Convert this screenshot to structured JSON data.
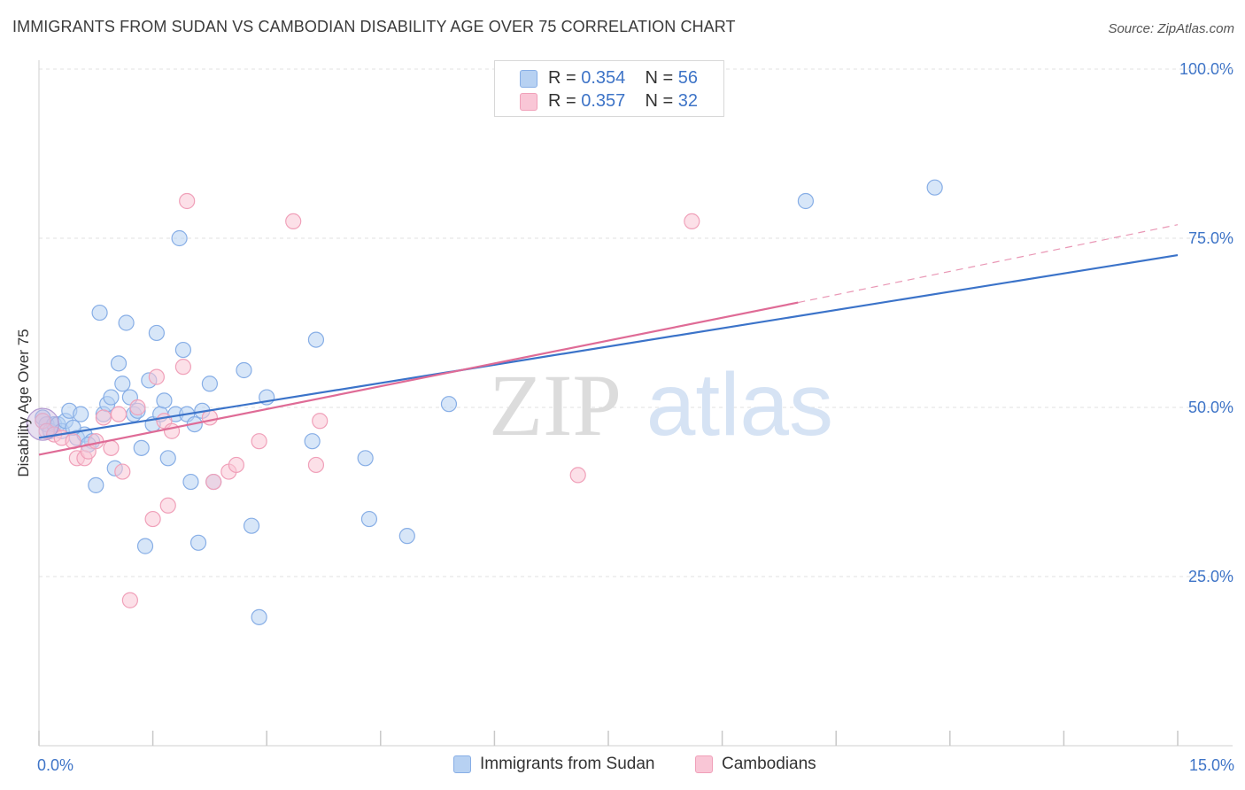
{
  "title": "IMMIGRANTS FROM SUDAN VS CAMBODIAN DISABILITY AGE OVER 75 CORRELATION CHART",
  "source": "Source: ZipAtlas.com",
  "watermark": {
    "zip": "ZIP",
    "atlas": "atlas"
  },
  "colors": {
    "blue": "#3b73c9",
    "blue_fill": "#b7d1f2",
    "blue_stroke": "#87aee6",
    "pink": "#df6b96",
    "pink_fill": "#f9c6d6",
    "pink_stroke": "#f0a0b9",
    "tick_label": "#3e74c7",
    "grid": "#e2e2e2"
  },
  "legend": {
    "rows": [
      {
        "r_label": "R =",
        "r_value": "0.354",
        "n_label": "N =",
        "n_value": "56"
      },
      {
        "r_label": "R =",
        "r_value": "0.357",
        "n_label": "N =",
        "n_value": "32"
      }
    ]
  },
  "chart_data": {
    "type": "scatter",
    "ylabel": "Disability Age Over 75",
    "xlim": [
      0,
      15
    ],
    "ylim": [
      0,
      100
    ],
    "x_tick_labels": [
      "0.0%",
      "15.0%"
    ],
    "y_ticks": [
      {
        "value": 100,
        "label": "100.0%"
      },
      {
        "value": 75,
        "label": "75.0%"
      },
      {
        "value": 50,
        "label": "50.0%"
      },
      {
        "value": 25,
        "label": "25.0%"
      }
    ],
    "grid": true,
    "legend_position": "top-center",
    "series": [
      {
        "name": "Immigrants from Sudan",
        "color": "#3b73c9",
        "r": 0.354,
        "n": 56,
        "trend": {
          "x0": 0,
          "y0": 45.5,
          "x1": 15,
          "y1": 72.5
        },
        "points": [
          [
            0.05,
            48.5
          ],
          [
            0.1,
            47.5
          ],
          [
            0.15,
            46.5
          ],
          [
            0.2,
            47.5
          ],
          [
            0.25,
            47.5
          ],
          [
            0.3,
            46.5
          ],
          [
            0.35,
            48.0
          ],
          [
            0.4,
            49.5
          ],
          [
            0.5,
            45.5
          ],
          [
            0.55,
            49.0
          ],
          [
            0.6,
            46.0
          ],
          [
            0.7,
            45.0
          ],
          [
            0.75,
            38.5
          ],
          [
            0.8,
            64.0
          ],
          [
            0.85,
            49.0
          ],
          [
            0.9,
            50.5
          ],
          [
            0.95,
            51.5
          ],
          [
            1.0,
            41.0
          ],
          [
            1.05,
            56.5
          ],
          [
            1.1,
            53.5
          ],
          [
            1.15,
            62.5
          ],
          [
            1.2,
            51.5
          ],
          [
            1.25,
            49.0
          ],
          [
            1.3,
            49.5
          ],
          [
            1.35,
            44.0
          ],
          [
            1.4,
            29.5
          ],
          [
            1.45,
            54.0
          ],
          [
            1.5,
            47.5
          ],
          [
            1.55,
            61.0
          ],
          [
            1.6,
            49.0
          ],
          [
            1.65,
            51.0
          ],
          [
            1.7,
            42.5
          ],
          [
            1.8,
            49.0
          ],
          [
            1.85,
            75.0
          ],
          [
            1.9,
            58.5
          ],
          [
            1.95,
            49.0
          ],
          [
            2.0,
            39.0
          ],
          [
            2.05,
            47.5
          ],
          [
            2.1,
            30.0
          ],
          [
            2.15,
            49.5
          ],
          [
            2.25,
            53.5
          ],
          [
            2.3,
            39.0
          ],
          [
            2.7,
            55.5
          ],
          [
            2.8,
            32.5
          ],
          [
            2.9,
            19.0
          ],
          [
            3.0,
            51.5
          ],
          [
            3.6,
            45.0
          ],
          [
            3.65,
            60.0
          ],
          [
            4.3,
            42.5
          ],
          [
            4.35,
            33.5
          ],
          [
            4.85,
            31.0
          ],
          [
            5.4,
            50.5
          ],
          [
            10.1,
            80.5
          ],
          [
            11.8,
            82.5
          ],
          [
            0.45,
            47.0
          ],
          [
            0.65,
            44.5
          ]
        ]
      },
      {
        "name": "Cambodians",
        "color": "#df6b96",
        "r": 0.357,
        "n": 32,
        "trend": {
          "x0": 0,
          "y0": 43.0,
          "x1": 10.0,
          "y1": 65.5,
          "dash_x1": 15,
          "dash_y1": 77.0
        },
        "points": [
          [
            0.05,
            48.0
          ],
          [
            0.1,
            46.5
          ],
          [
            0.2,
            46.0
          ],
          [
            0.3,
            45.5
          ],
          [
            0.45,
            45.0
          ],
          [
            0.5,
            42.5
          ],
          [
            0.6,
            42.5
          ],
          [
            0.65,
            43.5
          ],
          [
            0.75,
            45.0
          ],
          [
            0.85,
            48.5
          ],
          [
            0.95,
            44.0
          ],
          [
            1.05,
            49.0
          ],
          [
            1.1,
            40.5
          ],
          [
            1.2,
            21.5
          ],
          [
            1.3,
            50.0
          ],
          [
            1.5,
            33.5
          ],
          [
            1.55,
            54.5
          ],
          [
            1.65,
            48.0
          ],
          [
            1.7,
            35.5
          ],
          [
            1.9,
            56.0
          ],
          [
            1.95,
            80.5
          ],
          [
            2.25,
            48.5
          ],
          [
            2.3,
            39.0
          ],
          [
            2.5,
            40.5
          ],
          [
            2.6,
            41.5
          ],
          [
            2.9,
            45.0
          ],
          [
            3.35,
            77.5
          ],
          [
            3.65,
            41.5
          ],
          [
            3.7,
            48.0
          ],
          [
            7.1,
            40.0
          ],
          [
            8.6,
            77.5
          ],
          [
            1.75,
            46.5
          ]
        ]
      }
    ]
  }
}
